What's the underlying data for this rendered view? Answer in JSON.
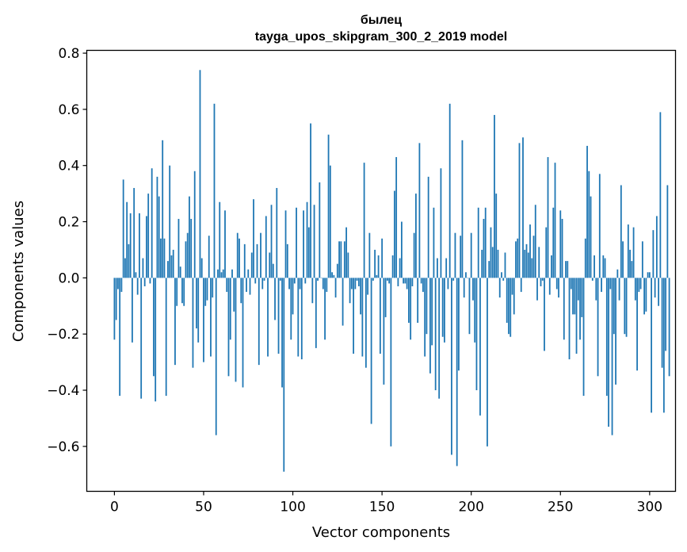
{
  "chart_data": {
    "type": "bar",
    "title_line1": "былец",
    "title_line2": "tayga_upos_skipgram_300_2_2019 model",
    "xlabel": "Vector components",
    "ylabel": "Components values",
    "xlim": [
      -15.5,
      314.5
    ],
    "ylim": [
      -0.76,
      0.81
    ],
    "xticks": [
      0,
      50,
      100,
      150,
      200,
      250,
      300
    ],
    "yticks": [
      -0.6,
      -0.4,
      -0.2,
      0.0,
      0.2,
      0.4,
      0.6,
      0.8
    ],
    "ytick_labels": [
      "−0.6",
      "−0.4",
      "−0.2",
      "0.0",
      "0.2",
      "0.4",
      "0.6",
      "0.8"
    ],
    "grid": false,
    "bar_color": "#1f77b4",
    "values": [
      -0.22,
      -0.15,
      -0.04,
      -0.42,
      -0.05,
      0.35,
      0.07,
      0.27,
      0.12,
      0.23,
      -0.23,
      0.32,
      0.02,
      -0.06,
      0.23,
      -0.43,
      0.07,
      -0.03,
      0.22,
      0.3,
      -0.02,
      0.39,
      -0.35,
      -0.44,
      0.36,
      0.29,
      0.14,
      0.49,
      0.14,
      -0.42,
      0.06,
      0.4,
      0.08,
      0.1,
      -0.31,
      -0.1,
      0.21,
      0.04,
      -0.09,
      -0.1,
      0.13,
      0.16,
      0.29,
      0.21,
      -0.32,
      0.38,
      -0.18,
      -0.23,
      0.74,
      0.07,
      -0.3,
      -0.1,
      -0.08,
      0.15,
      -0.28,
      -0.07,
      0.62,
      -0.56,
      0.03,
      0.27,
      0.02,
      0.03,
      0.24,
      -0.05,
      -0.35,
      -0.22,
      0.03,
      -0.12,
      -0.37,
      0.16,
      0.14,
      -0.09,
      -0.39,
      0.12,
      -0.05,
      0.03,
      -0.06,
      0.09,
      0.28,
      -0.02,
      0.12,
      -0.31,
      0.16,
      -0.04,
      -0.01,
      0.22,
      -0.28,
      0.09,
      0.26,
      0.05,
      -0.15,
      0.32,
      -0.27,
      -0.01,
      -0.39,
      -0.69,
      0.24,
      0.12,
      -0.04,
      -0.22,
      -0.13,
      -0.02,
      0.25,
      -0.28,
      -0.04,
      -0.29,
      0.24,
      -0.02,
      0.27,
      0.18,
      0.55,
      -0.09,
      0.26,
      -0.25,
      -0.01,
      0.34,
      0.0,
      -0.04,
      -0.22,
      -0.05,
      0.51,
      0.4,
      0.02,
      0.01,
      -0.07,
      0.05,
      0.13,
      0.13,
      -0.17,
      0.13,
      0.18,
      0.09,
      -0.09,
      -0.04,
      -0.27,
      -0.04,
      -0.01,
      -0.03,
      -0.13,
      -0.28,
      0.41,
      -0.32,
      -0.06,
      0.16,
      -0.52,
      -0.01,
      0.1,
      0.01,
      0.08,
      -0.27,
      0.14,
      -0.38,
      -0.14,
      -0.01,
      -0.02,
      -0.6,
      0.08,
      0.31,
      0.43,
      -0.03,
      0.07,
      0.2,
      -0.02,
      -0.02,
      -0.04,
      -0.16,
      -0.22,
      -0.03,
      0.16,
      0.3,
      -0.16,
      0.48,
      -0.02,
      -0.05,
      -0.28,
      -0.2,
      0.36,
      -0.34,
      -0.24,
      0.25,
      -0.4,
      0.07,
      -0.43,
      0.39,
      -0.21,
      -0.23,
      0.07,
      -0.04,
      0.62,
      -0.63,
      -0.01,
      0.16,
      -0.67,
      -0.33,
      0.15,
      0.49,
      -0.07,
      0.02,
      0.0,
      -0.2,
      0.16,
      -0.08,
      -0.23,
      -0.4,
      0.25,
      -0.49,
      0.1,
      0.21,
      0.25,
      -0.6,
      0.06,
      0.18,
      0.11,
      0.58,
      0.3,
      0.1,
      -0.07,
      0.02,
      -0.01,
      0.09,
      -0.16,
      -0.2,
      -0.21,
      -0.06,
      -0.13,
      0.13,
      0.14,
      0.48,
      -0.05,
      0.5,
      0.1,
      0.12,
      0.09,
      0.19,
      0.07,
      0.15,
      0.26,
      -0.08,
      0.11,
      -0.03,
      -0.01,
      -0.26,
      0.18,
      0.43,
      -0.06,
      0.08,
      0.25,
      0.41,
      -0.04,
      -0.07,
      0.24,
      0.21,
      -0.22,
      0.06,
      0.06,
      -0.29,
      -0.04,
      -0.13,
      -0.13,
      -0.27,
      -0.08,
      -0.22,
      -0.14,
      -0.42,
      0.14,
      0.47,
      0.38,
      0.29,
      -0.01,
      0.08,
      -0.08,
      -0.35,
      0.37,
      -0.05,
      0.08,
      0.07,
      -0.42,
      -0.53,
      -0.04,
      -0.56,
      -0.2,
      -0.38,
      0.03,
      -0.08,
      0.33,
      0.13,
      -0.2,
      -0.21,
      0.19,
      0.1,
      0.06,
      0.18,
      -0.08,
      -0.33,
      -0.05,
      -0.04,
      0.13,
      -0.13,
      -0.12,
      0.02,
      0.02,
      -0.48,
      0.17,
      -0.07,
      0.22,
      -0.1,
      0.59,
      -0.32,
      -0.48,
      -0.26,
      0.33,
      -0.35
    ]
  }
}
